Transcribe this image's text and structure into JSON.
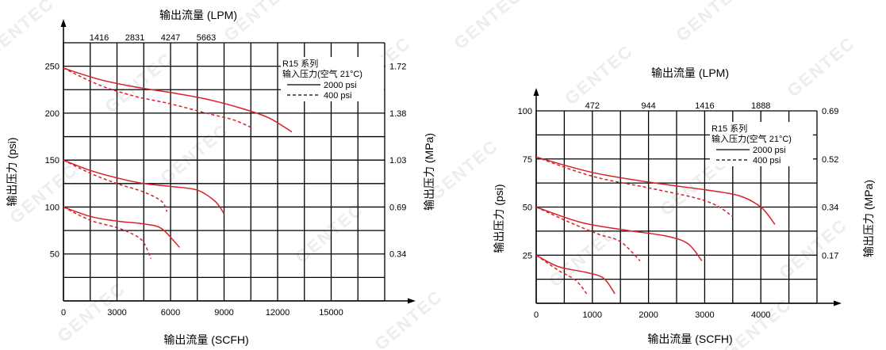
{
  "watermark": "GENTEC",
  "colors": {
    "curve": "#d9202a",
    "grid": "#000000"
  },
  "chart_data": [
    {
      "type": "line",
      "title": "输出流量 (LPM)",
      "xlabel": "输出流量 (SCFH)",
      "ylabel": "输出压力 (psi)",
      "y2label": "输出压力 (MPa)",
      "xlim": [
        0,
        18000
      ],
      "ylim": [
        0,
        275
      ],
      "x_ticks": [
        "0",
        "3000",
        "6000",
        "9000",
        "12000",
        "15000"
      ],
      "x_tick_values": [
        0,
        3000,
        6000,
        9000,
        12000,
        15000
      ],
      "y_ticks": [
        "50",
        "100",
        "150",
        "200",
        "250"
      ],
      "y_tick_values": [
        50,
        100,
        150,
        200,
        250
      ],
      "x2_ticks": [
        "1416",
        "2831",
        "4247",
        "5663"
      ],
      "x2_tick_values": [
        2000,
        4000,
        6000,
        8000
      ],
      "y2_ticks": [
        "0.34",
        "0.69",
        "1.03",
        "1.38",
        "1.72"
      ],
      "y2_tick_values": [
        50,
        100,
        150,
        200,
        250
      ],
      "legend": {
        "line1": "R15 系列",
        "line2": "输入压力(空气 21°C)",
        "solid": "2000 psi",
        "dashed": "400 psi"
      },
      "series": [
        {
          "name": "2000 psi",
          "style": "solid",
          "x": [
            0,
            2000,
            4000,
            6000,
            8000,
            10000,
            11500,
            12800
          ],
          "y": [
            248,
            236,
            228,
            222,
            215,
            205,
            195,
            180
          ]
        },
        {
          "name": "400 psi",
          "style": "dashed",
          "x": [
            0,
            2000,
            4000,
            6000,
            8000,
            9500,
            10500
          ],
          "y": [
            248,
            230,
            218,
            210,
            200,
            193,
            185
          ]
        },
        {
          "name": "2000 psi",
          "style": "solid",
          "x": [
            0,
            1500,
            3000,
            4500,
            6000,
            7500,
            8500,
            9000
          ],
          "y": [
            150,
            139,
            131,
            125,
            122,
            118,
            106,
            93
          ]
        },
        {
          "name": "400 psi",
          "style": "dashed",
          "x": [
            0,
            1500,
            3000,
            4500,
            5500,
            5800
          ],
          "y": [
            150,
            136,
            125,
            116,
            106,
            95
          ]
        },
        {
          "name": "2000 psi",
          "style": "solid",
          "x": [
            0,
            1500,
            3000,
            4500,
            5500,
            6500
          ],
          "y": [
            100,
            90,
            85,
            82,
            77,
            57
          ]
        },
        {
          "name": "400 psi",
          "style": "dashed",
          "x": [
            0,
            1500,
            3000,
            4000,
            4500,
            4900
          ],
          "y": [
            100,
            86,
            78,
            70,
            62,
            45
          ]
        }
      ]
    },
    {
      "type": "line",
      "title": "输出流量 (LPM)",
      "xlabel": "输出流量 (SCFH)",
      "ylabel": "输出压力 (psi)",
      "y2label": "输出压力 (MPa)",
      "xlim": [
        0,
        5000
      ],
      "ylim": [
        0,
        100
      ],
      "x_ticks": [
        "0",
        "1000",
        "2000",
        "3000",
        "4000"
      ],
      "x_tick_values": [
        0,
        1000,
        2000,
        3000,
        4000
      ],
      "y_ticks": [
        "25",
        "50",
        "75",
        "100"
      ],
      "y_tick_values": [
        25,
        50,
        75,
        100
      ],
      "x2_ticks": [
        "472",
        "944",
        "1416",
        "1888"
      ],
      "x2_tick_values": [
        1000,
        2000,
        3000,
        4000
      ],
      "y2_ticks": [
        "0.17",
        "0.34",
        "0.52",
        "0.69"
      ],
      "y2_tick_values": [
        25,
        50,
        75,
        100
      ],
      "legend": {
        "line1": "R15 系列",
        "line2": "输入压力(空气 21°C)",
        "solid": "2000 psi",
        "dashed": "400 psi"
      },
      "series": [
        {
          "name": "2000 psi",
          "style": "solid",
          "x": [
            0,
            1000,
            2000,
            3000,
            3600,
            4000,
            4250
          ],
          "y": [
            76,
            68,
            63,
            59,
            56,
            50,
            41
          ]
        },
        {
          "name": "400 psi",
          "style": "dashed",
          "x": [
            0,
            1000,
            2000,
            2800,
            3200,
            3500
          ],
          "y": [
            76,
            66,
            60,
            55,
            51,
            45
          ]
        },
        {
          "name": "2000 psi",
          "style": "solid",
          "x": [
            0,
            800,
            1600,
            2300,
            2700,
            2950
          ],
          "y": [
            50,
            42,
            38,
            35,
            31,
            22
          ]
        },
        {
          "name": "400 psi",
          "style": "dashed",
          "x": [
            0,
            600,
            1100,
            1500,
            1850
          ],
          "y": [
            50,
            42,
            36,
            32,
            22
          ]
        },
        {
          "name": "2000 psi",
          "style": "solid",
          "x": [
            0,
            400,
            900,
            1200,
            1400
          ],
          "y": [
            25,
            19,
            16,
            13,
            5
          ]
        },
        {
          "name": "400 psi",
          "style": "dashed",
          "x": [
            0,
            400,
            700,
            900
          ],
          "y": [
            25,
            17,
            12,
            5
          ]
        }
      ]
    }
  ]
}
